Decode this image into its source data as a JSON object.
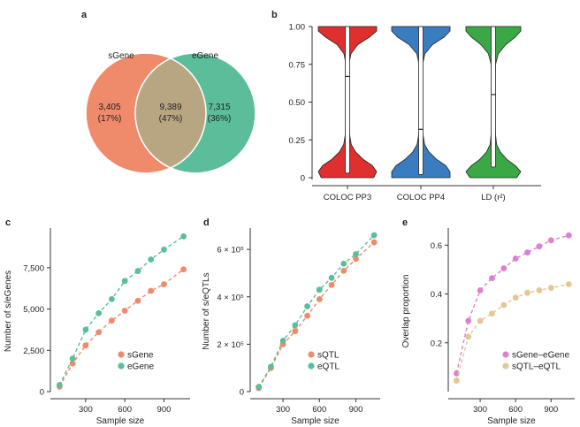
{
  "colors": {
    "sGene": "#ef8a6a",
    "eGene": "#5bbd9a",
    "overlap": "#b8a682",
    "coloc_pp3": "#e02f2f",
    "coloc_pp4": "#3a7cc0",
    "ld": "#3aa845",
    "sGene_eGene_overlap": "#dd80cf",
    "sQTL_eQTL_overlap": "#e3c796"
  },
  "chart_data": [
    {
      "panel": "a",
      "type": "venn",
      "sets": [
        {
          "name": "sGene",
          "only_count": "3,405",
          "only_pct": "(17%)"
        },
        {
          "name": "eGene",
          "only_count": "7,315",
          "only_pct": "(36%)"
        }
      ],
      "overlap": {
        "count": "9,389",
        "pct": "(47%)"
      }
    },
    {
      "panel": "b",
      "type": "violin",
      "categories": [
        "COLOC PP3",
        "COLOC PP4",
        "LD (r²)"
      ],
      "medians": [
        0.67,
        0.32,
        0.55
      ],
      "quartiles": [
        [
          0.03,
          1.0
        ],
        [
          0.02,
          1.0
        ],
        [
          0.07,
          1.0
        ]
      ],
      "ylim": [
        0,
        1
      ],
      "yticks": [
        "0",
        "0.25",
        "0.50",
        "0.75",
        "1.00"
      ],
      "xlabel": "",
      "ylabel": "",
      "grid": false
    },
    {
      "panel": "c",
      "type": "line",
      "x": [
        100,
        200,
        300,
        400,
        500,
        600,
        700,
        800,
        900,
        1050
      ],
      "series": [
        {
          "name": "sGene",
          "values": [
            300,
            1700,
            2800,
            3600,
            4300,
            4900,
            5500,
            6100,
            6500,
            7400
          ]
        },
        {
          "name": "eGene",
          "values": [
            400,
            2000,
            3750,
            4750,
            5600,
            6700,
            7300,
            8000,
            8600,
            9400
          ]
        }
      ],
      "xlabel": "Sample size",
      "ylabel": "Number of s/eGenes",
      "xticks": [
        "300",
        "600",
        "900"
      ],
      "yticks": [
        "0",
        "2,500",
        "5,000",
        "7,500"
      ],
      "xlim": [
        30,
        1100
      ],
      "ylim": [
        0,
        9900
      ],
      "legend": "bottom-right"
    },
    {
      "panel": "d",
      "type": "line",
      "x": [
        100,
        200,
        300,
        400,
        500,
        600,
        700,
        800,
        900,
        1050
      ],
      "series": [
        {
          "name": "sQTL",
          "values": [
            15000,
            100000,
            200000,
            255000,
            320000,
            390000,
            450000,
            510000,
            560000,
            630000
          ]
        },
        {
          "name": "eQTL",
          "values": [
            20000,
            105000,
            215000,
            280000,
            360000,
            430000,
            480000,
            540000,
            580000,
            660000
          ]
        }
      ],
      "xlabel": "Sample size",
      "ylabel": "Number of s/eQTLs",
      "xticks": [
        "300",
        "600",
        "900"
      ],
      "yticks": [
        "0",
        "2 × 10⁵",
        "4 × 10⁵",
        "6 × 10⁵"
      ],
      "xlim": [
        30,
        1100
      ],
      "ylim": [
        0,
        690000
      ],
      "legend": "bottom-right"
    },
    {
      "panel": "e",
      "type": "line",
      "x": [
        100,
        200,
        300,
        400,
        500,
        600,
        700,
        800,
        900,
        1050
      ],
      "series": [
        {
          "name": "sGene–eGene",
          "values": [
            0.075,
            0.29,
            0.415,
            0.465,
            0.505,
            0.545,
            0.57,
            0.595,
            0.62,
            0.64
          ]
        },
        {
          "name": "sQTL–eQTL",
          "values": [
            0.045,
            0.225,
            0.29,
            0.32,
            0.355,
            0.385,
            0.405,
            0.415,
            0.425,
            0.44
          ]
        }
      ],
      "xlabel": "Sample size",
      "ylabel": "Overlap proportion",
      "xticks": [
        "300",
        "600",
        "900"
      ],
      "yticks": [
        "0.2",
        "0.4",
        "0.6"
      ],
      "xlim": [
        30,
        1100
      ],
      "ylim": [
        0.0,
        0.67
      ],
      "legend": "bottom-right"
    }
  ]
}
